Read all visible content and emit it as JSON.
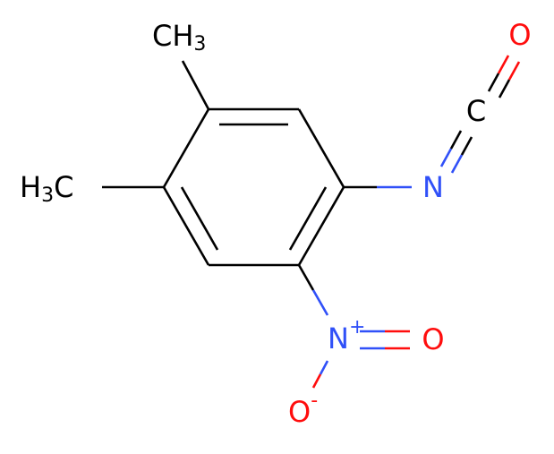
{
  "atoms": {
    "methyl_top": {
      "main": "CH",
      "sub": "3"
    },
    "methyl_left": {
      "pre": "H",
      "sub": "3",
      "main": "C"
    },
    "isocyanate_n": {
      "main": "N"
    },
    "isocyanate_c": {
      "main": "C"
    },
    "isocyanate_o": {
      "main": "O"
    },
    "nitro_n": {
      "main": "N",
      "charge": "+"
    },
    "nitro_o_double": {
      "main": "O"
    },
    "nitro_o_single": {
      "main": "O",
      "charge": "-"
    }
  }
}
